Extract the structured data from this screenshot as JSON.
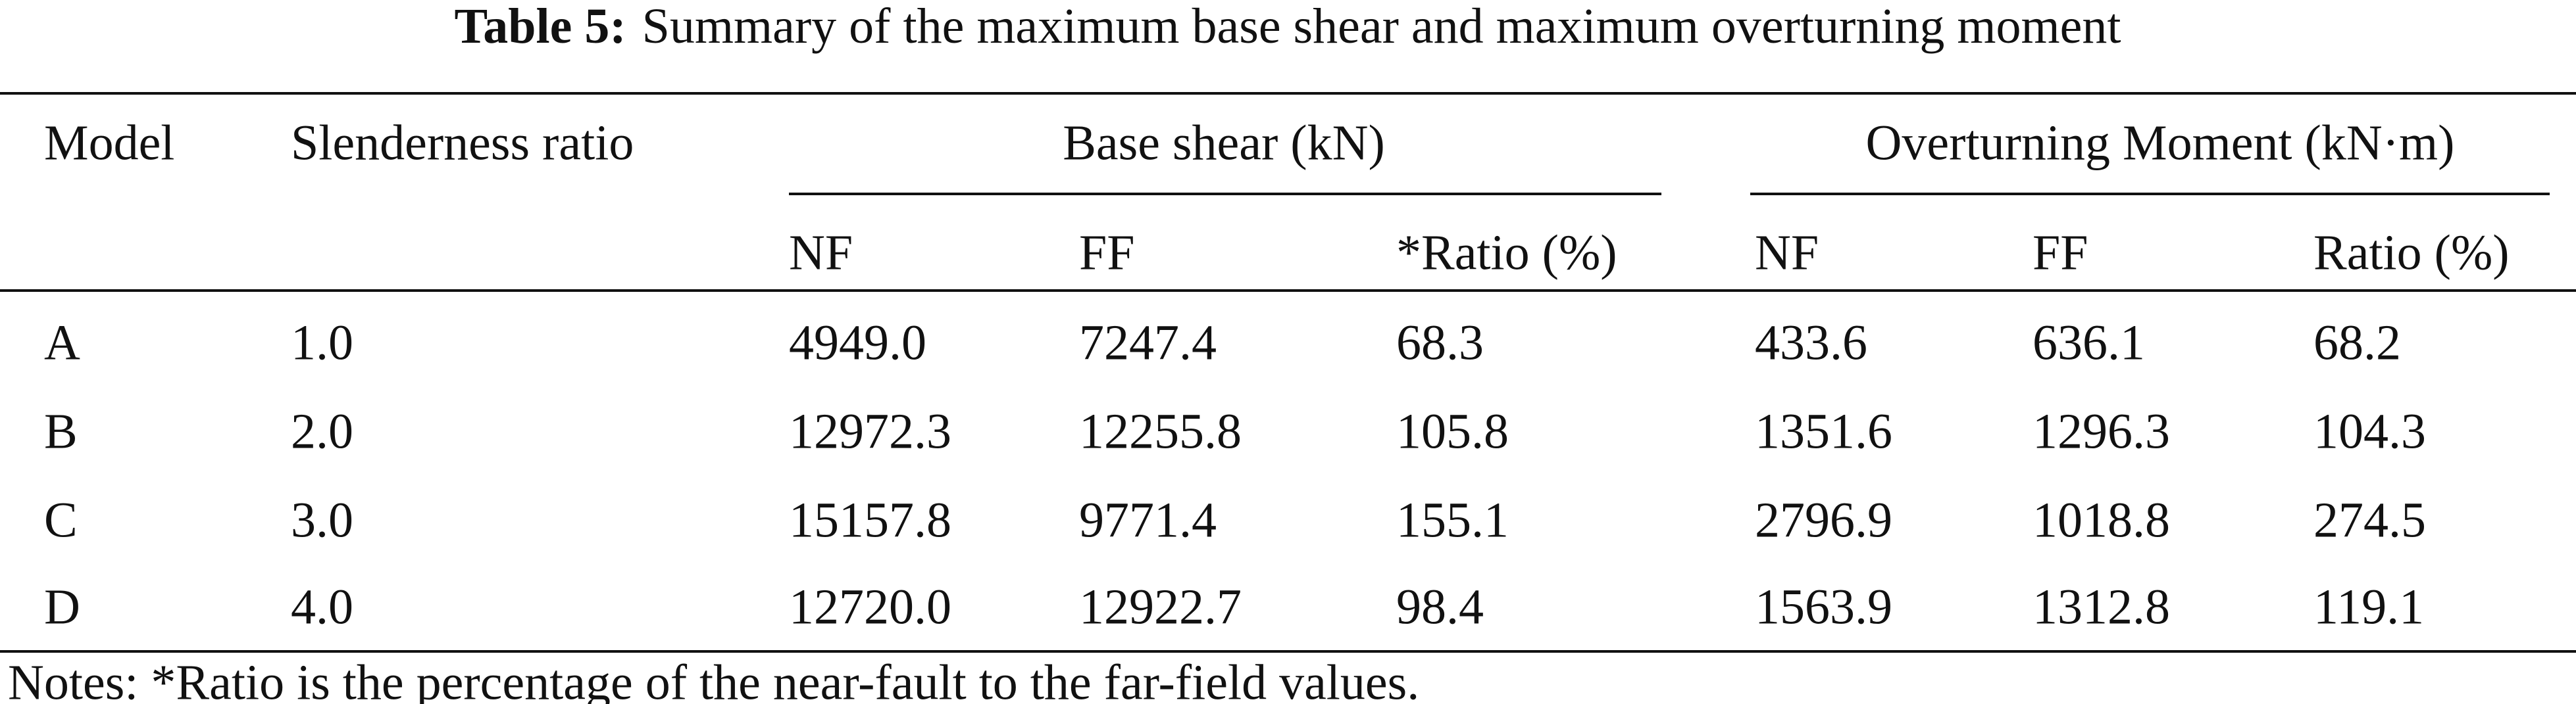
{
  "title": {
    "label": "Table 5:",
    "text": "Summary of the maximum base shear and maximum overturning moment"
  },
  "table": {
    "columns": [
      "Model",
      "Slenderness ratio"
    ],
    "groups": [
      {
        "label": "Base shear (kN)",
        "subcolumns": [
          "NF",
          "FF",
          "*Ratio (%)"
        ]
      },
      {
        "label": "Overturning Moment (kN·m)",
        "subcolumns": [
          "NF",
          "FF",
          "Ratio (%)"
        ]
      }
    ],
    "rows": [
      [
        "A",
        "1.0",
        "4949.0",
        "7247.4",
        "68.3",
        "433.6",
        "636.1",
        "68.2"
      ],
      [
        "B",
        "2.0",
        "12972.3",
        "12255.8",
        "105.8",
        "1351.6",
        "1296.3",
        "104.3"
      ],
      [
        "C",
        "3.0",
        "15157.8",
        "9771.4",
        "155.1",
        "2796.9",
        "1018.8",
        "274.5"
      ],
      [
        "D",
        "4.0",
        "12720.0",
        "12922.7",
        "98.4",
        "1563.9",
        "1312.8",
        "119.1"
      ]
    ]
  },
  "notes": "Notes: *Ratio is the percentage of the near-fault to the far-field values."
}
